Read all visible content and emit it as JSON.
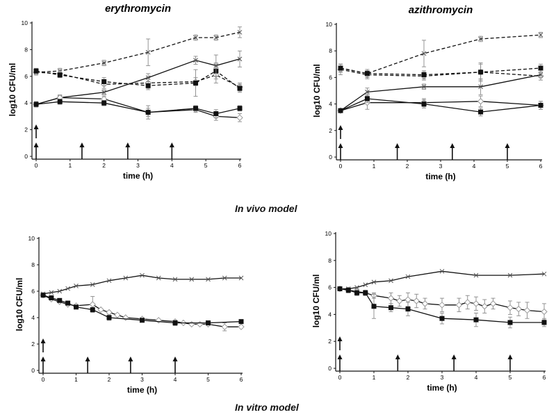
{
  "sections": {
    "in_vivo": "In vivo model",
    "in_vitro": "In vitro model"
  },
  "chart_data": [
    {
      "type": "line",
      "title": "erythromycin",
      "xlabel": "time (h)",
      "ylabel": "log10 CFU/ml",
      "xlim": [
        0,
        6
      ],
      "ylim": [
        0,
        10
      ],
      "xticks": [
        0,
        1,
        2,
        3,
        4,
        5,
        6
      ],
      "yticks": [
        0,
        2,
        4,
        6,
        8,
        10
      ],
      "dose_arrows": [
        0,
        1.35,
        2.7,
        4
      ],
      "double_arrow_at": 0,
      "series": [
        {
          "name": "control (dashed)",
          "marker": "x",
          "dashed": true,
          "x": [
            0,
            0.7,
            2,
            3.3,
            4.7,
            5.3,
            6
          ],
          "y": [
            6.3,
            6.4,
            7.0,
            7.8,
            8.9,
            8.9,
            9.3
          ],
          "err": [
            0.2,
            0.2,
            0.2,
            1.0,
            0.2,
            0.2,
            0.4
          ]
        },
        {
          "name": "treated dashed diamond",
          "marker": "diamond",
          "dashed": true,
          "x": [
            0,
            0.7,
            2,
            3.3,
            4.7,
            5.3,
            6
          ],
          "y": [
            6.3,
            6.2,
            5.4,
            5.5,
            5.6,
            6.1,
            5.2
          ],
          "err": [
            0.2,
            0.2,
            0.3,
            0.4,
            0.3,
            0.6,
            0.3
          ]
        },
        {
          "name": "treated dashed square",
          "marker": "square",
          "dashed": true,
          "x": [
            0,
            0.7,
            2,
            3.3,
            4.7,
            5.3,
            6
          ],
          "y": [
            6.4,
            6.1,
            5.6,
            5.3,
            5.5,
            6.4,
            5.1
          ],
          "err": [
            0.2,
            0.2,
            0.3,
            0.3,
            1.0,
            0.6,
            0.3
          ]
        },
        {
          "name": "control (solid)",
          "marker": "x",
          "dashed": false,
          "x": [
            0,
            0.7,
            2,
            3.3,
            4.7,
            5.3,
            6
          ],
          "y": [
            3.9,
            4.4,
            4.8,
            5.9,
            7.2,
            6.8,
            7.3
          ],
          "err": [
            0.2,
            0.2,
            0.2,
            0.3,
            0.3,
            0.8,
            0.6
          ]
        },
        {
          "name": "treated solid diamond",
          "marker": "diamond",
          "dashed": false,
          "x": [
            0,
            0.7,
            2,
            3.3,
            4.7,
            5.3,
            6
          ],
          "y": [
            3.9,
            4.4,
            4.3,
            3.3,
            3.5,
            3.0,
            2.9
          ],
          "err": [
            0.2,
            0.2,
            0.2,
            0.3,
            0.2,
            0.3,
            0.3
          ]
        },
        {
          "name": "treated solid square",
          "marker": "square",
          "dashed": false,
          "x": [
            0,
            0.7,
            2,
            3.3,
            4.7,
            5.3,
            6
          ],
          "y": [
            3.9,
            4.1,
            4.0,
            3.3,
            3.6,
            3.2,
            3.6
          ],
          "err": [
            0.2,
            0.2,
            0.2,
            0.5,
            0.2,
            0.3,
            0.2
          ]
        }
      ]
    },
    {
      "type": "line",
      "title": "azithromycin",
      "xlabel": "time (h)",
      "ylabel": "log10 CFU/ml",
      "xlim": [
        0,
        6
      ],
      "ylim": [
        0,
        10
      ],
      "xticks": [
        0,
        1,
        2,
        3,
        4,
        5,
        6
      ],
      "yticks": [
        0,
        2,
        4,
        6,
        8,
        10
      ],
      "dose_arrows": [
        0,
        1.7,
        3.35,
        5
      ],
      "double_arrow_at": 0,
      "series": [
        {
          "name": "control (dashed)",
          "marker": "x",
          "dashed": true,
          "x": [
            0,
            0.8,
            2.5,
            4.2,
            6
          ],
          "y": [
            6.7,
            6.3,
            7.8,
            8.9,
            9.2
          ],
          "err": [
            0.3,
            0.2,
            1.0,
            0.2,
            0.2
          ]
        },
        {
          "name": "treated dashed diamond",
          "marker": "diamond",
          "dashed": true,
          "x": [
            0,
            0.8,
            2.5,
            4.2,
            6
          ],
          "y": [
            6.6,
            6.2,
            6.1,
            6.4,
            6.1
          ],
          "err": [
            0.4,
            0.3,
            0.3,
            0.7,
            0.3
          ]
        },
        {
          "name": "treated dashed square",
          "marker": "square",
          "dashed": true,
          "x": [
            0,
            0.8,
            2.5,
            4.2,
            6
          ],
          "y": [
            6.7,
            6.3,
            6.2,
            6.4,
            6.7
          ],
          "err": [
            0.3,
            0.3,
            0.3,
            0.6,
            0.3
          ]
        },
        {
          "name": "control (solid)",
          "marker": "x",
          "dashed": false,
          "x": [
            0,
            0.8,
            2.5,
            4.2,
            6
          ],
          "y": [
            3.5,
            4.9,
            5.3,
            5.3,
            6.2
          ],
          "err": [
            0.1,
            0.3,
            0.2,
            0.6,
            0.2
          ]
        },
        {
          "name": "treated solid diamond",
          "marker": "diamond",
          "dashed": false,
          "x": [
            0,
            0.8,
            2.5,
            4.2,
            6
          ],
          "y": [
            3.5,
            4.1,
            4.1,
            4.2,
            3.9
          ],
          "err": [
            0.1,
            0.5,
            0.3,
            0.4,
            0.3
          ]
        },
        {
          "name": "treated solid square",
          "marker": "square",
          "dashed": false,
          "x": [
            0,
            0.8,
            2.5,
            4.2,
            6
          ],
          "y": [
            3.5,
            4.4,
            4.0,
            3.4,
            3.9
          ],
          "err": [
            0.1,
            0.3,
            0.3,
            0.3,
            0.3
          ]
        }
      ]
    },
    {
      "type": "line",
      "title": "",
      "xlabel": "time (h)",
      "ylabel": "log10 CFU/ml",
      "xlim": [
        0,
        6
      ],
      "ylim": [
        0,
        10
      ],
      "xticks": [
        0,
        1,
        2,
        3,
        4,
        5,
        6
      ],
      "yticks": [
        0,
        2,
        4,
        6,
        8,
        10
      ],
      "dose_arrows": [
        0,
        1.35,
        2.65,
        4
      ],
      "double_arrow_at": 0,
      "series": [
        {
          "name": "control",
          "marker": "x",
          "dashed": false,
          "x": [
            0,
            0.25,
            0.5,
            0.75,
            1,
            1.5,
            2,
            2.5,
            3,
            3.5,
            4,
            4.5,
            5,
            5.5,
            6
          ],
          "y": [
            5.8,
            5.9,
            6.0,
            6.2,
            6.4,
            6.5,
            6.8,
            7.0,
            7.2,
            7.0,
            6.9,
            6.9,
            6.9,
            7.0,
            7.0
          ],
          "err": [
            0.1,
            0.1,
            0.1,
            0.1,
            0.1,
            0.1,
            0.1,
            0.1,
            0.1,
            0.1,
            0.1,
            0.1,
            0.1,
            0.1,
            0.1
          ]
        },
        {
          "name": "treated diamond",
          "marker": "diamond",
          "dashed": false,
          "x": [
            0,
            0.25,
            0.5,
            0.75,
            1,
            1.5,
            1.75,
            2,
            2.25,
            2.5,
            3,
            3.5,
            4,
            4.25,
            4.5,
            4.75,
            5,
            5.5,
            6
          ],
          "y": [
            5.7,
            5.4,
            5.2,
            5.0,
            4.9,
            5.0,
            4.6,
            4.4,
            4.2,
            4.0,
            3.9,
            3.8,
            3.7,
            3.6,
            3.5,
            3.5,
            3.5,
            3.3,
            3.3
          ],
          "err": [
            0.1,
            0.1,
            0.1,
            0.1,
            0.1,
            0.6,
            0.1,
            0.1,
            0.1,
            0.1,
            0.1,
            0.1,
            0.1,
            0.1,
            0.1,
            0.1,
            0.1,
            0.3,
            0.1
          ]
        },
        {
          "name": "treated square",
          "marker": "square",
          "dashed": false,
          "x": [
            0,
            0.25,
            0.5,
            0.75,
            1,
            1.5,
            2,
            3,
            4,
            5,
            6
          ],
          "y": [
            5.7,
            5.5,
            5.3,
            5.1,
            4.8,
            4.6,
            4.0,
            3.8,
            3.6,
            3.6,
            3.7
          ],
          "err": [
            0.1,
            0.1,
            0.1,
            0.1,
            0.1,
            0.1,
            0.2,
            0.1,
            0.2,
            0.1,
            0.1
          ]
        }
      ]
    },
    {
      "type": "line",
      "title": "",
      "xlabel": "time (h)",
      "ylabel": "log10 CFU/ml",
      "xlim": [
        0,
        6
      ],
      "ylim": [
        0,
        10
      ],
      "xticks": [
        0,
        1,
        2,
        3,
        4,
        5,
        6
      ],
      "yticks": [
        0,
        2,
        4,
        6,
        8,
        10
      ],
      "dose_arrows": [
        0,
        1.7,
        3.35,
        5
      ],
      "double_arrow_at": 0,
      "series": [
        {
          "name": "control",
          "marker": "x",
          "dashed": false,
          "x": [
            0,
            0.25,
            0.5,
            0.75,
            1,
            1.5,
            2,
            3,
            4,
            5,
            6
          ],
          "y": [
            5.9,
            5.9,
            6.0,
            6.2,
            6.4,
            6.5,
            6.8,
            7.2,
            6.9,
            6.9,
            7.0
          ],
          "err": [
            0.1,
            0.1,
            0.1,
            0.1,
            0.1,
            0.1,
            0.1,
            0.1,
            0.1,
            0.1,
            0.1
          ]
        },
        {
          "name": "treated diamond",
          "marker": "diamond",
          "dashed": false,
          "x": [
            0,
            0.25,
            0.5,
            0.75,
            1,
            1.5,
            1.75,
            2,
            2.25,
            2.5,
            3,
            3.5,
            3.75,
            4,
            4.25,
            4.5,
            5,
            5.25,
            5.5,
            6
          ],
          "y": [
            5.9,
            5.8,
            5.7,
            5.6,
            5.4,
            5.2,
            5.0,
            5.1,
            5.0,
            4.8,
            4.7,
            4.7,
            4.9,
            4.8,
            4.6,
            4.8,
            4.5,
            4.4,
            4.3,
            4.2
          ],
          "err": [
            0.1,
            0.2,
            0.2,
            0.2,
            0.2,
            0.4,
            0.4,
            0.5,
            0.5,
            0.4,
            0.5,
            0.5,
            0.5,
            0.5,
            0.5,
            0.4,
            0.5,
            0.5,
            0.6,
            0.6
          ]
        },
        {
          "name": "treated square",
          "marker": "square",
          "dashed": false,
          "x": [
            0,
            0.25,
            0.5,
            0.75,
            1,
            1.5,
            2,
            3,
            4,
            5,
            6
          ],
          "y": [
            5.9,
            5.8,
            5.6,
            5.6,
            4.6,
            4.5,
            4.4,
            3.7,
            3.6,
            3.4,
            3.4
          ],
          "err": [
            0.1,
            0.2,
            0.2,
            0.2,
            0.9,
            0.3,
            0.5,
            0.4,
            0.5,
            0.4,
            0.3
          ]
        }
      ]
    }
  ]
}
